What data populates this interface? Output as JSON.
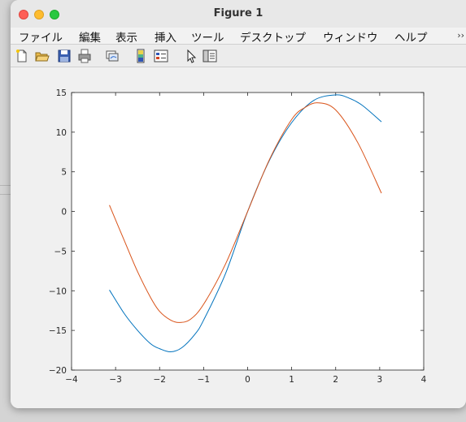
{
  "window": {
    "title": "Figure 1"
  },
  "menu": {
    "items": [
      "ファイル",
      "編集",
      "表示",
      "挿入",
      "ツール",
      "デスクトップ",
      "ウィンドウ",
      "ヘルプ"
    ],
    "overflow_icon": "chevron-right-icon"
  },
  "toolbar": {
    "icons": [
      "new-figure-icon",
      "open-file-icon",
      "save-icon",
      "print-icon",
      "link-plot-icon",
      "colorbar-icon",
      "legend-icon",
      "pointer-icon",
      "property-inspector-icon"
    ]
  },
  "chart_data": {
    "type": "line",
    "title": "",
    "xlabel": "",
    "ylabel": "",
    "xlim": [
      -4,
      4
    ],
    "ylim": [
      -20,
      15
    ],
    "xticks": [
      "−4",
      "−3",
      "−2",
      "−1",
      "0",
      "1",
      "2",
      "3",
      "4"
    ],
    "yticks": [
      "15",
      "10",
      "5",
      "0",
      "−5",
      "−10",
      "−15",
      "−20"
    ],
    "grid": false,
    "series": [
      {
        "color": "#0072bd",
        "x": [
          -3.14,
          -2.8,
          -2.5,
          -2.2,
          -2.0,
          -1.75,
          -1.5,
          -1.2,
          -1.0,
          -0.5,
          0,
          0.5,
          1.0,
          1.5,
          2.0,
          2.3,
          2.6,
          3.04
        ],
        "values": [
          -9.9,
          -12.9,
          -15.0,
          -16.7,
          -17.3,
          -17.7,
          -17.2,
          -15.5,
          -13.7,
          -7.8,
          0,
          6.5,
          11.2,
          14.0,
          14.7,
          14.3,
          13.4,
          11.3
        ]
      },
      {
        "color": "#d95319",
        "x": [
          -3.14,
          -2.8,
          -2.5,
          -2.2,
          -2.0,
          -1.75,
          -1.55,
          -1.3,
          -1.0,
          -0.5,
          0,
          0.5,
          1.0,
          1.3,
          1.6,
          2.0,
          2.5,
          3.04
        ],
        "values": [
          0.8,
          -3.7,
          -7.6,
          -10.9,
          -12.6,
          -13.7,
          -14.0,
          -13.6,
          -11.7,
          -6.6,
          0,
          6.6,
          11.6,
          13.1,
          13.7,
          12.8,
          8.7,
          2.3
        ]
      }
    ]
  }
}
